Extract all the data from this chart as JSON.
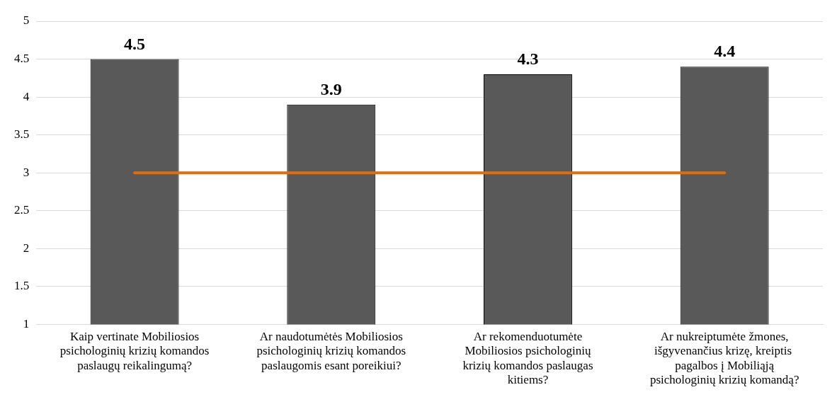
{
  "chart_data": {
    "type": "bar",
    "categories": [
      "Kaip vertinate Mobiliosios psichologinių krizių komandos paslaugų reikalingumą?",
      "Ar naudotumėtės Mobiliosios psichologinių krizių komandos paslaugomis esant poreikiui?",
      "Ar rekomenduotumėte Mobiliosios psichologinių krizių komandos paslaugas kitiems?",
      "Ar nukreiptumėte žmones, išgyvenančius krizę, kreiptis  pagalbos į Mobiliąją psichologinių krizių komandą?"
    ],
    "series": [
      {
        "color": "#595959",
        "values": [
          4.5,
          3.9,
          4.3,
          4.4
        ],
        "value_labels": [
          "4.5",
          "3.9",
          "4.3",
          "4.4"
        ]
      },
      {
        "type": "line",
        "color": "#e46c0a",
        "values": [
          3,
          3,
          3,
          3
        ]
      }
    ],
    "ylim": [
      1,
      5
    ],
    "yticks": [
      1,
      1.5,
      2,
      2.5,
      3,
      3.5,
      4,
      4.5,
      5
    ],
    "grid": "y",
    "legend": false,
    "marker": "none"
  }
}
